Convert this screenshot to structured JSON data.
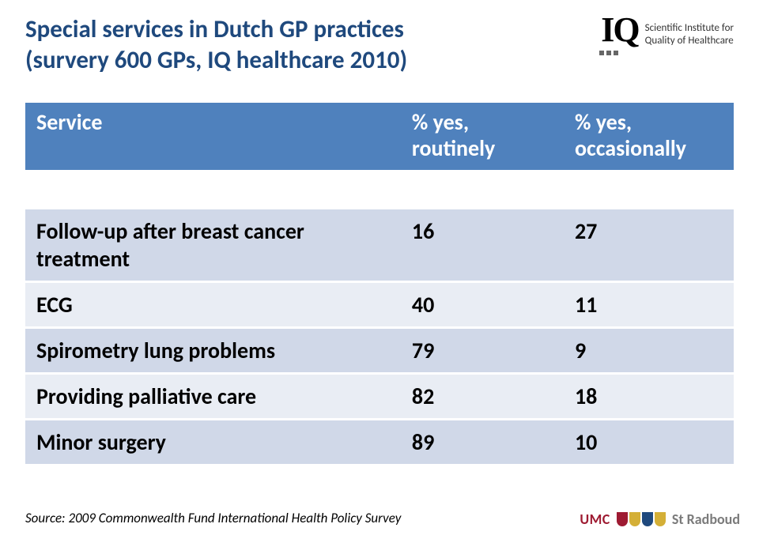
{
  "title": {
    "line1": "Special services in Dutch GP practices",
    "line2": "(survery 600 GPs, IQ healthcare 2010)",
    "color": "#1f497d",
    "fontsize": 31
  },
  "logo_iq": {
    "mark": "IQ",
    "text_line1": "Scientific Institute for",
    "text_line2": "Quality of Healthcare"
  },
  "table": {
    "header_bg": "#4f81bd",
    "header_color": "#ffffff",
    "band_dark": "#d0d8e8",
    "band_light": "#e9edf4",
    "columns": [
      "Service",
      "% yes,\nroutinely",
      "% yes,\noccasionally"
    ],
    "rows": [
      {
        "service": "Follow-up after breast cancer treatment",
        "routinely": "16",
        "occasionally": "27",
        "band": "dark"
      },
      {
        "service": "ECG",
        "routinely": "40",
        "occasionally": "11",
        "band": "light"
      },
      {
        "service": "Spirometry lung problems",
        "routinely": "79",
        "occasionally": "9",
        "band": "dark"
      },
      {
        "service": "Providing palliative care",
        "routinely": "82",
        "occasionally": "18",
        "band": "light"
      },
      {
        "service": "Minor surgery",
        "routinely": "89",
        "occasionally": "10",
        "band": "dark"
      }
    ]
  },
  "footer": "Source: 2009 Commonwealth Fund International Health Policy Survey",
  "logo_umc": {
    "umc": "UMC",
    "radboud": "St Radboud",
    "shield_colors": [
      "#9e1b32",
      "#d4af37",
      "#1f497d",
      "#d4af37"
    ]
  }
}
